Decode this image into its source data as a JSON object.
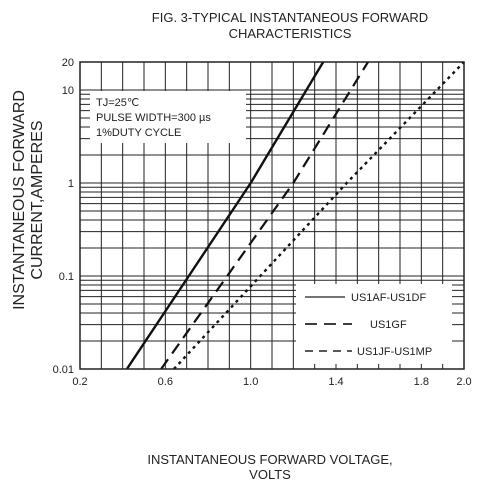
{
  "chart_data": {
    "type": "line",
    "title": [
      "FIG. 3-TYPICAL INSTANTANEOUS FORWARD",
      "CHARACTERISTICS"
    ],
    "ylabel": [
      "INSTANTANEOUS FORWARD",
      "CURRENT,AMPERES"
    ],
    "xlabel": [
      "INSTANTANEOUS FORWARD VOLTAGE,",
      "VOLTS"
    ],
    "x_scale": "linear",
    "y_scale": "log",
    "xlim": [
      0.2,
      2.0
    ],
    "ylim": [
      0.01,
      20
    ],
    "x_ticks": [
      {
        "value": 0.2,
        "label": "0.2"
      },
      {
        "value": 0.6,
        "label": "0.6"
      },
      {
        "value": 1.0,
        "label": "1.0"
      },
      {
        "value": 1.4,
        "label": "1.4"
      },
      {
        "value": 1.8,
        "label": "1.8"
      },
      {
        "value": 2.0,
        "label": "2.0"
      }
    ],
    "y_ticks": [
      {
        "value": 0.01,
        "label": "0.01"
      },
      {
        "value": 0.1,
        "label": "0.1"
      },
      {
        "value": 1,
        "label": "1"
      },
      {
        "value": 10,
        "label": "10"
      },
      {
        "value": 20,
        "label": "20"
      }
    ],
    "grid": true,
    "legend_position": "bottom-right",
    "annotation": [
      "TJ=25℃",
      "PULSE WIDTH=300 µs",
      "1%DUTY CYCLE"
    ],
    "series": [
      {
        "name": "US1AF-US1DF",
        "style": "solid",
        "x": [
          0.42,
          1.0,
          1.34
        ],
        "y": [
          0.01,
          1,
          20
        ]
      },
      {
        "name": "US1GF",
        "style": "dashed",
        "x": [
          0.58,
          1.2,
          1.55
        ],
        "y": [
          0.01,
          1,
          20
        ]
      },
      {
        "name": "US1JF-US1MP",
        "style": "dotted",
        "x": [
          0.64,
          1.45,
          2.0
        ],
        "y": [
          0.01,
          1,
          20
        ]
      }
    ]
  }
}
